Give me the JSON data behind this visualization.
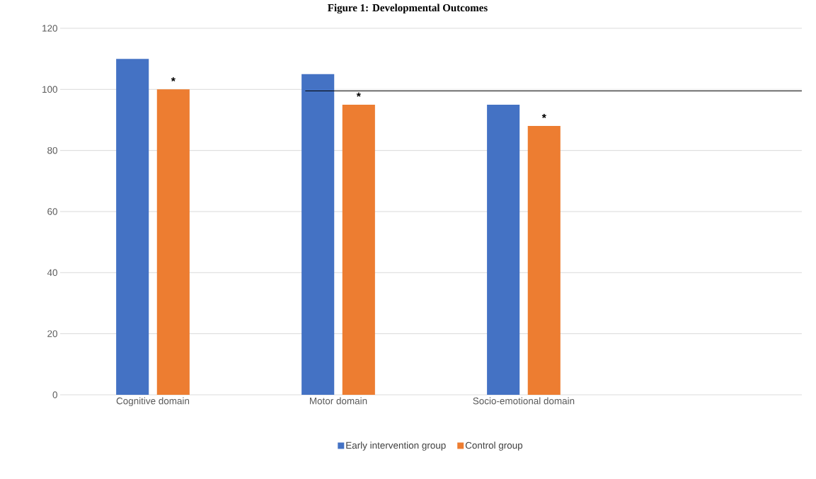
{
  "chart_data": {
    "type": "bar",
    "title": "Figure 1: Developmental Outcomes",
    "categories": [
      "Cognitive domain",
      "Motor domain",
      "Socio-emotional domain",
      null
    ],
    "series": [
      {
        "name": "Early intervention group",
        "color": "#4472c4",
        "values": [
          110,
          105,
          95,
          null
        ]
      },
      {
        "name": "Control group",
        "color": "#ed7d31",
        "values": [
          100,
          95,
          88,
          null
        ]
      }
    ],
    "ylim": [
      0,
      120
    ],
    "yticks": [
      0,
      20,
      40,
      60,
      80,
      100,
      120
    ],
    "grid": "y",
    "legend": "bottom",
    "annotations": [
      "*",
      "*",
      "*"
    ],
    "ref_lines": [
      {
        "axis": "y",
        "value": 99.5,
        "color": "#000000"
      }
    ]
  }
}
